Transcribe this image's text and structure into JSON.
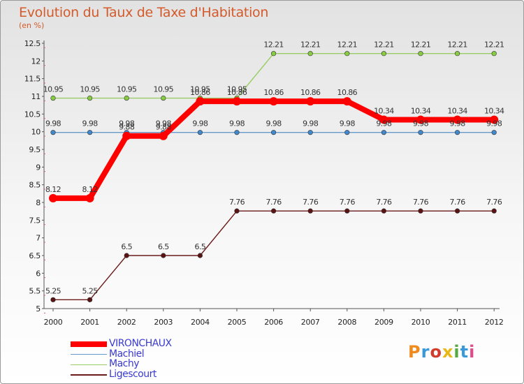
{
  "header": {
    "title": "Evolution du Taux de Taxe d'Habitation",
    "subtitle": "(en %)"
  },
  "logo": {
    "text": "Proxiti",
    "colors": [
      "#f08a1c",
      "#3a9ad9",
      "#d33b2c",
      "#e8b817",
      "#56a841",
      "#3a9ad9",
      "#e04a8a"
    ]
  },
  "legend": {
    "items": [
      {
        "label": "VIRONCHAUX",
        "color": "#ff0000",
        "width": 8
      },
      {
        "label": "Machiel",
        "color": "#6699cc",
        "width": 1.5
      },
      {
        "label": "Machy",
        "color": "#99cc66",
        "width": 1.5
      },
      {
        "label": "Ligescourt",
        "color": "#6b1a1a",
        "width": 1.5
      }
    ]
  },
  "chart_data": {
    "type": "line",
    "title": "Evolution du Taux de Taxe d'Habitation",
    "ylabel": "(en %)",
    "xlabel": "",
    "x": [
      "2000",
      "2001",
      "2002",
      "2003",
      "2004",
      "2005",
      "2006",
      "2007",
      "2008",
      "2009",
      "2010",
      "2011",
      "2012"
    ],
    "ylim": [
      5,
      12.5
    ],
    "yticks": [
      "5",
      "5.5",
      "6",
      "6.5",
      "7",
      "7.5",
      "8",
      "8.5",
      "9",
      "9.5",
      "10",
      "10.5",
      "11",
      "11.5",
      "12",
      "12.5"
    ],
    "grid": false,
    "series": [
      {
        "name": "Machy",
        "color": "#99cc66",
        "marker": "#88cc44",
        "values": [
          10.95,
          10.95,
          10.95,
          10.95,
          10.95,
          10.95,
          12.21,
          12.21,
          12.21,
          12.21,
          12.21,
          12.21,
          12.21
        ],
        "labels": [
          "10.95",
          "10.95",
          "10.95",
          "10.95",
          "10.95",
          "10.95",
          "12.21",
          "12.21",
          "12.21",
          "12.21",
          "12.21",
          "12.21",
          "12.21"
        ]
      },
      {
        "name": "Machiel",
        "color": "#6699cc",
        "marker": "#4488cc",
        "values": [
          9.98,
          9.98,
          9.98,
          9.98,
          9.98,
          9.98,
          9.98,
          9.98,
          9.98,
          9.98,
          9.98,
          9.98,
          9.98
        ],
        "labels": [
          "9.98",
          "9.98",
          "9.98",
          "9.98",
          "9.98",
          "9.98",
          "9.98",
          "9.98",
          "9.98",
          "9.98",
          "9.98",
          "9.98",
          "9.98"
        ]
      },
      {
        "name": "Ligescourt",
        "color": "#6b1a1a",
        "marker": "#5a1212",
        "values": [
          5.25,
          5.25,
          6.5,
          6.5,
          6.5,
          7.76,
          7.76,
          7.76,
          7.76,
          7.76,
          7.76,
          7.76,
          7.76
        ],
        "labels": [
          "5.25",
          "5.25",
          "6.5",
          "6.5",
          "6.5",
          "7.76",
          "7.76",
          "7.76",
          "7.76",
          "7.76",
          "7.76",
          "7.76",
          "7.76"
        ]
      },
      {
        "name": "VIRONCHAUX",
        "color": "#ff0000",
        "marker": "#ff0000",
        "values": [
          8.12,
          8.12,
          9.88,
          9.88,
          10.86,
          10.86,
          10.86,
          10.86,
          10.86,
          10.34,
          10.34,
          10.34,
          10.34
        ],
        "labels": [
          "8.12",
          "8.12",
          "9.88",
          "9.88",
          "10.86",
          "10.86",
          "10.86",
          "10.86",
          "10.86",
          "10.34",
          "10.34",
          "10.34",
          "10.34"
        ]
      }
    ]
  }
}
